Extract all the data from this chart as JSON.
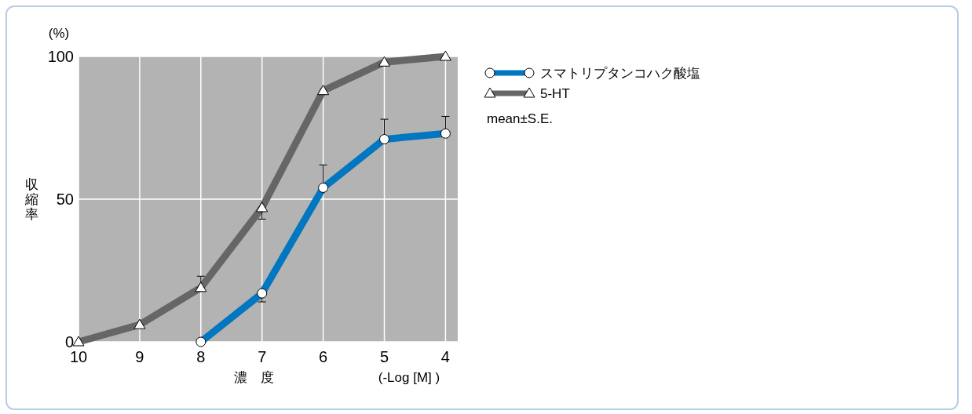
{
  "chart_data": {
    "type": "line",
    "ylabel": "収縮率",
    "xlabel": "濃　度",
    "annotations": [
      "(%)",
      "(-Log [M] )",
      "mean±S.E."
    ],
    "xlim": [
      10,
      3.8
    ],
    "xticks": [
      10,
      9,
      8,
      7,
      6,
      5,
      4
    ],
    "ylim": [
      0,
      100
    ],
    "yticks": [
      0,
      50,
      100
    ],
    "grid": true,
    "legend": "right",
    "line_style": "solid",
    "series": [
      {
        "name": "スマトリプタンコハク酸塩",
        "color": "#0077c0",
        "marker": "circle",
        "x": [
          8,
          7,
          6,
          5,
          4
        ],
        "values": [
          0,
          17,
          54,
          71,
          73
        ],
        "errors": [
          null,
          [
            14,
            17
          ],
          [
            54,
            62
          ],
          [
            71,
            78
          ],
          [
            73,
            79
          ]
        ]
      },
      {
        "name": "5-HT",
        "color": "#666666",
        "marker": "triangle",
        "x": [
          10,
          9,
          8,
          7,
          6,
          5,
          4
        ],
        "values": [
          0,
          6,
          19,
          47,
          88,
          98,
          100
        ],
        "errors": [
          null,
          null,
          [
            19,
            23
          ],
          [
            43,
            47
          ],
          null,
          null,
          null
        ]
      }
    ]
  }
}
